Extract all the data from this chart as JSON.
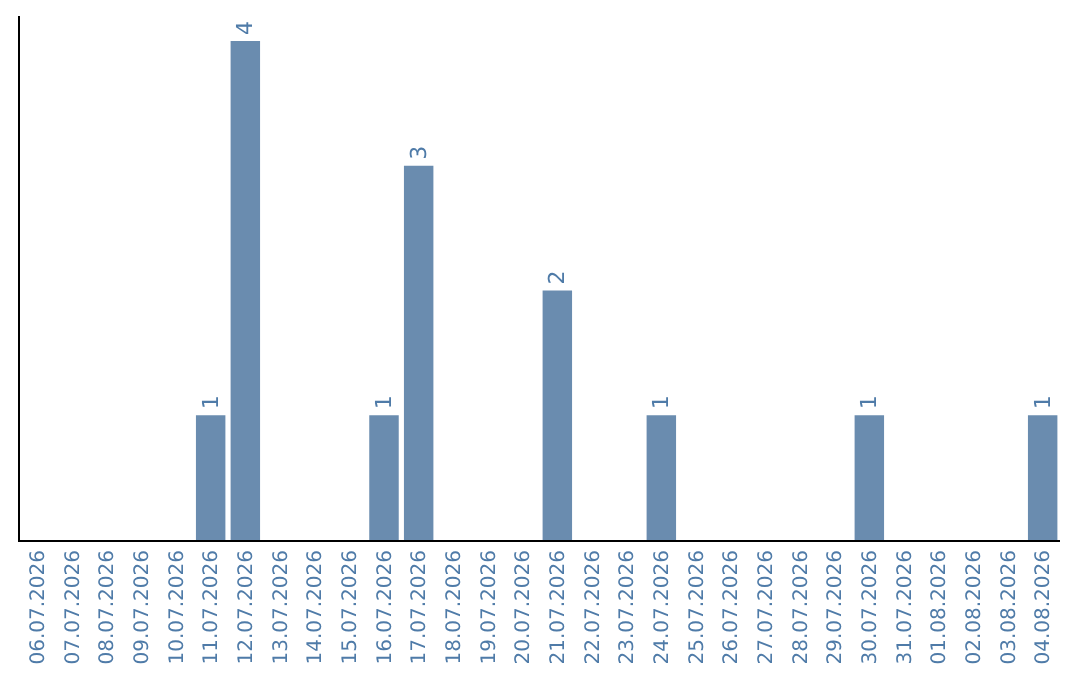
{
  "chart_data": {
    "type": "bar",
    "categories": [
      "06.07.2026",
      "07.07.2026",
      "08.07.2026",
      "09.07.2026",
      "10.07.2026",
      "11.07.2026",
      "12.07.2026",
      "13.07.2026",
      "14.07.2026",
      "15.07.2026",
      "16.07.2026",
      "17.07.2026",
      "18.07.2026",
      "19.07.2026",
      "20.07.2026",
      "21.07.2026",
      "22.07.2026",
      "23.07.2026",
      "24.07.2026",
      "25.07.2026",
      "26.07.2026",
      "27.07.2026",
      "28.07.2026",
      "29.07.2026",
      "30.07.2026",
      "31.07.2026",
      "01.08.2026",
      "02.08.2026",
      "03.08.2026",
      "04.08.2026"
    ],
    "values": [
      0,
      0,
      0,
      0,
      0,
      1,
      4,
      0,
      0,
      0,
      1,
      3,
      0,
      0,
      0,
      2,
      0,
      0,
      1,
      0,
      0,
      0,
      0,
      0,
      1,
      0,
      0,
      0,
      0,
      1
    ],
    "value_labels": [
      null,
      null,
      null,
      null,
      null,
      "1",
      "4",
      null,
      null,
      null,
      "1",
      "3",
      null,
      null,
      null,
      "2",
      null,
      null,
      "1",
      null,
      null,
      null,
      null,
      null,
      "1",
      null,
      null,
      null,
      null,
      "1"
    ],
    "color": "#6a8caf",
    "ylim": [
      0,
      4.2
    ]
  }
}
